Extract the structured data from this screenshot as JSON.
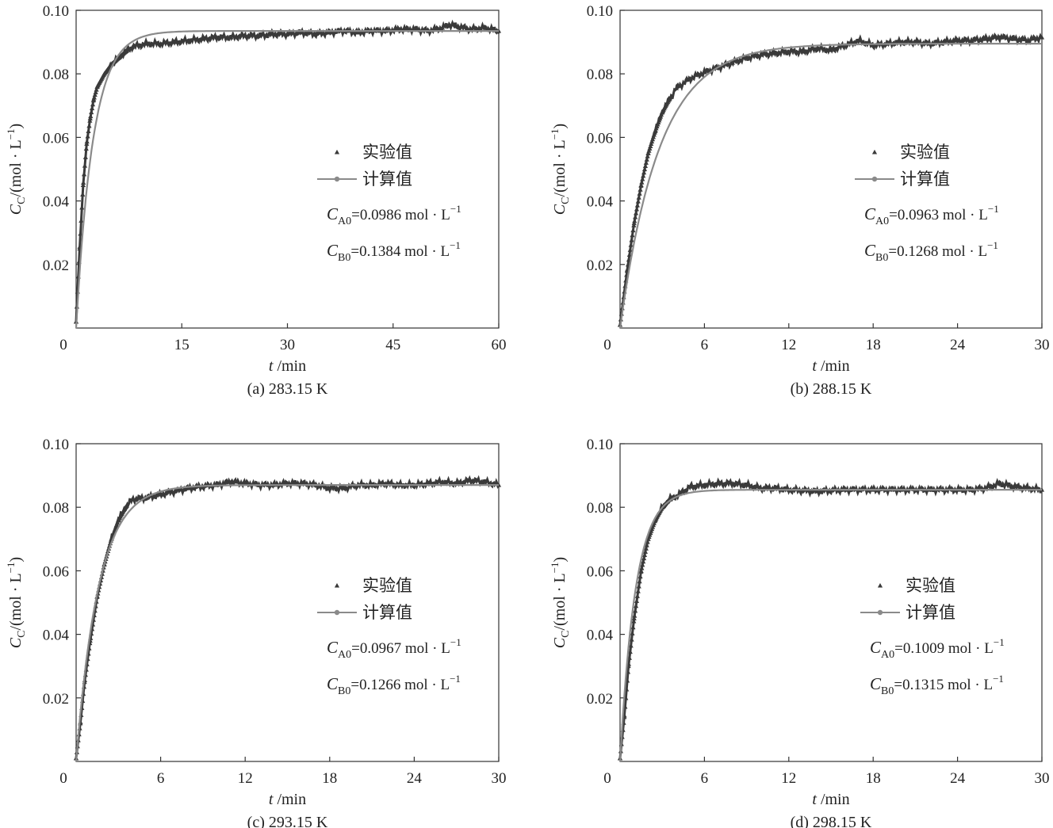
{
  "chart_data": [
    {
      "type": "line",
      "id": "a",
      "caption": "(a) 283.15 K",
      "xlabel_var": "t",
      "xlabel_unit": " /min",
      "ylabel": "C_C/(mol · L^-1)",
      "xlim": [
        0,
        60
      ],
      "ylim": [
        0,
        0.1
      ],
      "xticks": [
        "0",
        "15",
        "30",
        "45",
        "60"
      ],
      "yticks": [
        "0.02",
        "0.04",
        "0.06",
        "0.08",
        "0.10"
      ],
      "legend": {
        "experimental": "实验值",
        "calculated": "计算值"
      },
      "conditions": [
        {
          "sym": "C",
          "sub": "A0",
          "text": "=0.0986 mol · L",
          "sup": "−1"
        },
        {
          "sym": "C",
          "sub": "B0",
          "text": "=0.1384 mol · L",
          "sup": "−1"
        }
      ],
      "series": [
        {
          "name": "计算值",
          "model": "first-order-rise",
          "c_inf": 0.0935,
          "tau_min": 2.4
        },
        {
          "name": "实验值",
          "points": [
            [
              0,
              0.002
            ],
            [
              0.5,
              0.025
            ],
            [
              1,
              0.045
            ],
            [
              1.5,
              0.058
            ],
            [
              2,
              0.066
            ],
            [
              2.5,
              0.072
            ],
            [
              3,
              0.076
            ],
            [
              4,
              0.08
            ],
            [
              5,
              0.083
            ],
            [
              6,
              0.085
            ],
            [
              7,
              0.087
            ],
            [
              8,
              0.0885
            ],
            [
              9,
              0.089
            ],
            [
              10,
              0.0895
            ],
            [
              12,
              0.0895
            ],
            [
              14,
              0.09
            ],
            [
              16,
              0.0905
            ],
            [
              18,
              0.091
            ],
            [
              20,
              0.0915
            ],
            [
              22,
              0.0915
            ],
            [
              24,
              0.092
            ],
            [
              26,
              0.092
            ],
            [
              28,
              0.0925
            ],
            [
              30,
              0.0925
            ],
            [
              32,
              0.093
            ],
            [
              34,
              0.0925
            ],
            [
              36,
              0.093
            ],
            [
              38,
              0.0935
            ],
            [
              40,
              0.093
            ],
            [
              42,
              0.0935
            ],
            [
              44,
              0.0935
            ],
            [
              46,
              0.094
            ],
            [
              48,
              0.094
            ],
            [
              50,
              0.0935
            ],
            [
              52,
              0.0945
            ],
            [
              53,
              0.0955
            ],
            [
              54,
              0.095
            ],
            [
              56,
              0.094
            ],
            [
              58,
              0.0945
            ],
            [
              60,
              0.0935
            ]
          ]
        }
      ]
    },
    {
      "type": "line",
      "id": "b",
      "caption": "(b) 288.15 K",
      "xlabel_var": "t",
      "xlabel_unit": " /min",
      "ylabel": "C_C/(mol · L^-1)",
      "xlim": [
        0,
        30
      ],
      "ylim": [
        0,
        0.1
      ],
      "xticks": [
        "0",
        "6",
        "12",
        "18",
        "24",
        "30"
      ],
      "yticks": [
        "0.02",
        "0.04",
        "0.06",
        "0.08",
        "0.10"
      ],
      "legend": {
        "experimental": "实验值",
        "calculated": "计算值"
      },
      "conditions": [
        {
          "sym": "C",
          "sub": "A0",
          "text": "=0.0963 mol · L",
          "sup": "−1"
        },
        {
          "sym": "C",
          "sub": "B0",
          "text": "=0.1268 mol · L",
          "sup": "−1"
        }
      ],
      "series": [
        {
          "name": "计算值",
          "model": "first-order-rise",
          "c_inf": 0.0895,
          "tau_min": 2.8
        },
        {
          "name": "实验值",
          "points": [
            [
              0,
              0.001
            ],
            [
              0.5,
              0.018
            ],
            [
              1,
              0.033
            ],
            [
              1.5,
              0.045
            ],
            [
              2,
              0.055
            ],
            [
              2.5,
              0.062
            ],
            [
              3,
              0.068
            ],
            [
              3.5,
              0.072
            ],
            [
              4,
              0.0755
            ],
            [
              5,
              0.0785
            ],
            [
              6,
              0.0805
            ],
            [
              7,
              0.082
            ],
            [
              8,
              0.0835
            ],
            [
              9,
              0.085
            ],
            [
              10,
              0.086
            ],
            [
              11,
              0.0865
            ],
            [
              12,
              0.087
            ],
            [
              13,
              0.087
            ],
            [
              14,
              0.088
            ],
            [
              15,
              0.0875
            ],
            [
              16,
              0.089
            ],
            [
              17,
              0.0905
            ],
            [
              18,
              0.089
            ],
            [
              19,
              0.0895
            ],
            [
              20,
              0.09
            ],
            [
              21,
              0.09
            ],
            [
              22,
              0.0895
            ],
            [
              23,
              0.09
            ],
            [
              24,
              0.0905
            ],
            [
              25,
              0.0905
            ],
            [
              26,
              0.091
            ],
            [
              27,
              0.0915
            ],
            [
              28,
              0.091
            ],
            [
              29,
              0.0905
            ],
            [
              30,
              0.0915
            ]
          ]
        }
      ]
    },
    {
      "type": "line",
      "id": "c",
      "caption": "(c) 293.15 K",
      "xlabel_var": "t",
      "xlabel_unit": " /min",
      "ylabel": "C_C/(mol · L^-1)",
      "xlim": [
        0,
        30
      ],
      "ylim": [
        0,
        0.1
      ],
      "xticks": [
        "0",
        "6",
        "12",
        "18",
        "24",
        "30"
      ],
      "yticks": [
        "0.02",
        "0.04",
        "0.06",
        "0.08",
        "0.10"
      ],
      "legend": {
        "experimental": "实验值",
        "calculated": "计算值"
      },
      "conditions": [
        {
          "sym": "C",
          "sub": "A0",
          "text": "=0.0967 mol · L",
          "sup": "−1"
        },
        {
          "sym": "C",
          "sub": "B0",
          "text": "=0.1266 mol · L",
          "sup": "−1"
        }
      ],
      "series": [
        {
          "name": "计算值",
          "model": "first-order-rise",
          "c_inf": 0.087,
          "tau_min": 1.6
        },
        {
          "name": "实验值",
          "points": [
            [
              0,
              0.001
            ],
            [
              0.3,
              0.012
            ],
            [
              0.6,
              0.025
            ],
            [
              1,
              0.038
            ],
            [
              1.5,
              0.052
            ],
            [
              2,
              0.062
            ],
            [
              2.5,
              0.07
            ],
            [
              3,
              0.076
            ],
            [
              3.5,
              0.08
            ],
            [
              4,
              0.0825
            ],
            [
              5,
              0.083
            ],
            [
              6,
              0.084
            ],
            [
              7,
              0.085
            ],
            [
              8,
              0.086
            ],
            [
              9,
              0.0865
            ],
            [
              10,
              0.087
            ],
            [
              11,
              0.088
            ],
            [
              12,
              0.0875
            ],
            [
              13,
              0.087
            ],
            [
              14,
              0.087
            ],
            [
              15,
              0.0875
            ],
            [
              16,
              0.0875
            ],
            [
              17,
              0.087
            ],
            [
              18,
              0.086
            ],
            [
              19,
              0.086
            ],
            [
              20,
              0.087
            ],
            [
              21,
              0.087
            ],
            [
              22,
              0.0875
            ],
            [
              23,
              0.087
            ],
            [
              24,
              0.087
            ],
            [
              25,
              0.0875
            ],
            [
              26,
              0.088
            ],
            [
              27,
              0.0875
            ],
            [
              28,
              0.0885
            ],
            [
              29,
              0.088
            ],
            [
              30,
              0.087
            ]
          ]
        }
      ]
    },
    {
      "type": "line",
      "id": "d",
      "caption": "(d) 298.15 K",
      "xlabel_var": "t",
      "xlabel_unit": " /min",
      "ylabel": "C_C/(mol · L^-1)",
      "xlim": [
        0,
        30
      ],
      "ylim": [
        0,
        0.1
      ],
      "xticks": [
        "0",
        "6",
        "12",
        "18",
        "24",
        "30"
      ],
      "yticks": [
        "0.02",
        "0.04",
        "0.06",
        "0.08",
        "0.10"
      ],
      "legend": {
        "experimental": "实验值",
        "calculated": "计算值"
      },
      "conditions": [
        {
          "sym": "C",
          "sub": "A0",
          "text": "=0.1009 mol · L",
          "sup": "−1"
        },
        {
          "sym": "C",
          "sub": "B0",
          "text": "=0.1315 mol · L",
          "sup": "−1"
        }
      ],
      "series": [
        {
          "name": "计算值",
          "model": "first-order-rise",
          "c_inf": 0.0855,
          "tau_min": 1.1
        },
        {
          "name": "实验值",
          "points": [
            [
              0,
              0.001
            ],
            [
              0.3,
              0.014
            ],
            [
              0.6,
              0.03
            ],
            [
              1,
              0.045
            ],
            [
              1.5,
              0.06
            ],
            [
              2,
              0.07
            ],
            [
              2.5,
              0.076
            ],
            [
              3,
              0.08
            ],
            [
              3.5,
              0.0825
            ],
            [
              4,
              0.0835
            ],
            [
              5,
              0.0865
            ],
            [
              6,
              0.087
            ],
            [
              7,
              0.0875
            ],
            [
              8,
              0.0875
            ],
            [
              9,
              0.087
            ],
            [
              10,
              0.086
            ],
            [
              11,
              0.086
            ],
            [
              12,
              0.0855
            ],
            [
              14,
              0.085
            ],
            [
              16,
              0.0855
            ],
            [
              18,
              0.0855
            ],
            [
              20,
              0.0855
            ],
            [
              22,
              0.0855
            ],
            [
              24,
              0.0855
            ],
            [
              25,
              0.0855
            ],
            [
              26,
              0.086
            ],
            [
              27,
              0.0875
            ],
            [
              28,
              0.0865
            ],
            [
              29,
              0.086
            ],
            [
              30,
              0.0855
            ]
          ]
        }
      ]
    }
  ]
}
